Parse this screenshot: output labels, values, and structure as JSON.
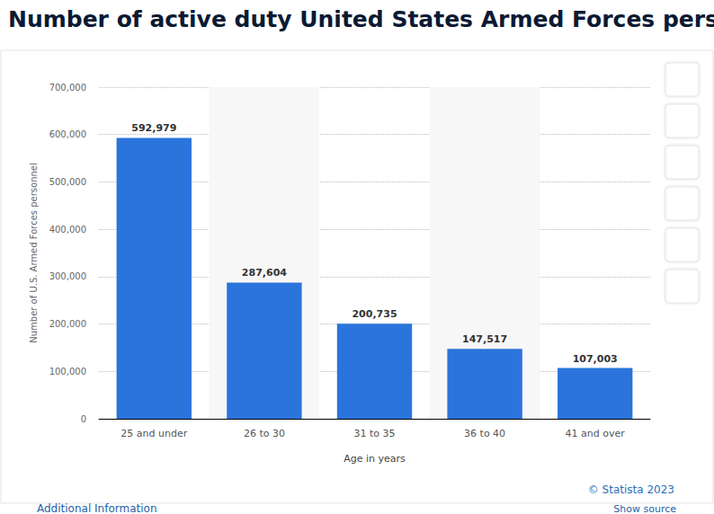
{
  "chart_data": {
    "type": "bar",
    "title": "Number of active duty United States Armed Forces personnel",
    "x_label": "Age in years",
    "y_label": "Number of U.S. Armed Forces personnel",
    "categories": [
      "25 and under",
      "26 to 30",
      "31 to 35",
      "36 to 40",
      "41 and over"
    ],
    "values": [
      592979,
      287604,
      200735,
      147517,
      107003
    ],
    "value_labels": [
      "592,979",
      "287,604",
      "200,735",
      "147,517",
      "107,003"
    ],
    "color": "#2a74db",
    "ylim": [
      0,
      700000
    ],
    "yticks": [
      0,
      {
        "value": 100000,
        "label": "100,000"
      },
      {
        "value": 200000,
        "label": "200,000"
      },
      {
        "value": 300000,
        "label": "300,000"
      },
      {
        "value": 400000,
        "label": "400,000"
      },
      {
        "value": 500000,
        "label": "500,000"
      },
      {
        "value": 600000,
        "label": "600,000"
      },
      {
        "value": 700000,
        "label": "700,000"
      }
    ],
    "grid": true,
    "data_labels": true,
    "annotations": [
      "© Statista 2023",
      "Additional Information",
      "Show source"
    ]
  }
}
